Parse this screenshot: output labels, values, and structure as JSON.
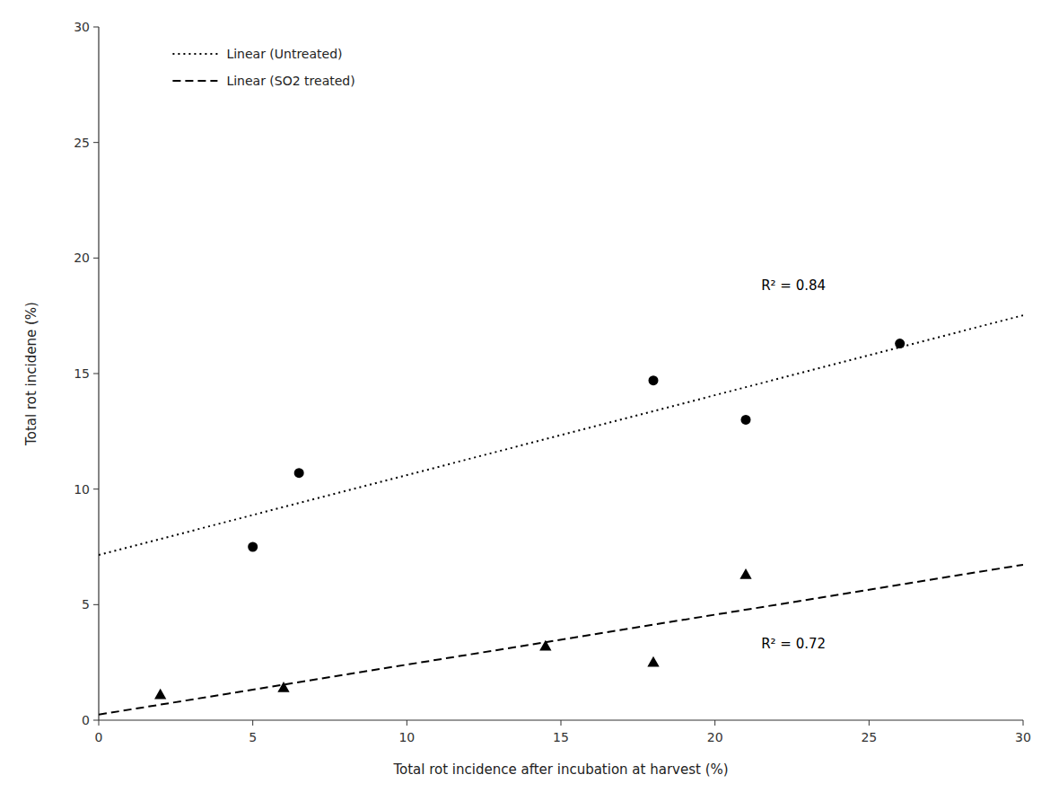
{
  "chart_data": {
    "type": "scatter",
    "xlabel": "Total rot incidence after incubation at harvest (%)",
    "ylabel": "Total rot incidene (%)",
    "xlim": [
      0,
      30
    ],
    "ylim": [
      0,
      30
    ],
    "xticks": [
      0,
      5,
      10,
      15,
      20,
      25,
      30
    ],
    "yticks": [
      0,
      5,
      10,
      15,
      20,
      25,
      30
    ],
    "grid": false,
    "legend": "upper left",
    "series": [
      {
        "type": "scatter",
        "marker": "circle",
        "color": "#000000",
        "x": [
          5.0,
          6.5,
          18.0,
          21.0,
          26.0
        ],
        "values": [
          7.5,
          10.7,
          14.7,
          13.0,
          16.3
        ]
      },
      {
        "type": "scatter",
        "marker": "triangle",
        "color": "#000000",
        "x": [
          2.0,
          6.0,
          14.5,
          18.0,
          21.0
        ],
        "values": [
          1.1,
          1.4,
          3.2,
          2.5,
          6.3
        ]
      },
      {
        "type": "line",
        "name": "Linear (Untreated)",
        "line_style": "dotted",
        "color": "#000000",
        "x": [
          0,
          30
        ],
        "values": [
          7.1502,
          17.5223
        ]
      },
      {
        "type": "line",
        "name": "Linear (SO2 treated)",
        "line_style": "dashed",
        "color": "#000000",
        "x": [
          0,
          30
        ],
        "values": [
          0.2409,
          6.7266
        ]
      }
    ],
    "annotations": [
      {
        "text": "R² = 0.84",
        "x": 21.5,
        "y": 18.8
      },
      {
        "text": "R² = 0.72",
        "x": 21.5,
        "y": 3.3
      }
    ]
  }
}
